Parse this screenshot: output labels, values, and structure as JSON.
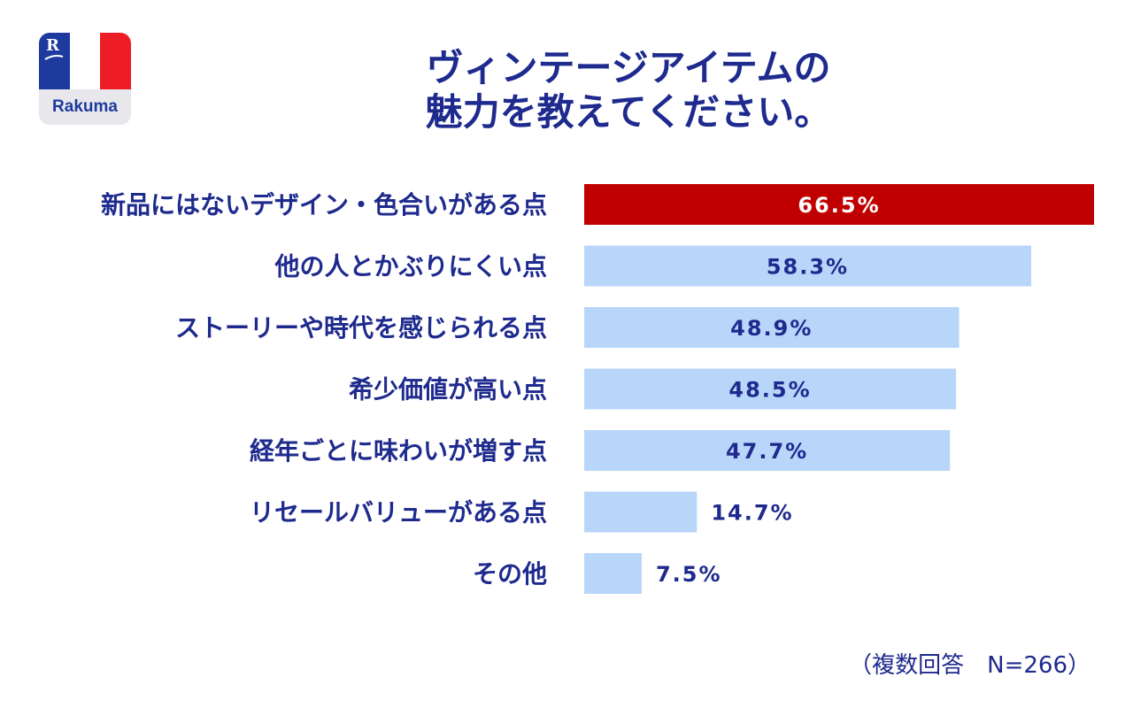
{
  "brand": {
    "logo_text": "Rakuma",
    "logo_mark": "R",
    "colors": {
      "blue": "#1e3a9e",
      "white": "#ffffff",
      "red": "#ee1c25"
    }
  },
  "colors": {
    "title": "#1e2a8e",
    "highlight_bar": "#c00000",
    "bar": "#b8d5fa",
    "label_on_highlight": "#ffffff",
    "label_on_bar": "#1e2a8e"
  },
  "chart_data": {
    "type": "bar",
    "orientation": "horizontal",
    "title_lines": [
      "ヴィンテージアイテムの",
      "魅力を教えてください。"
    ],
    "categories": [
      "新品にはないデザイン・色合いがある点",
      "他の人とかぶりにくい点",
      "ストーリーや時代を感じられる点",
      "希少価値が高い点",
      "経年ごとに味わいが増す点",
      "リセールバリューがある点",
      "その他"
    ],
    "values": [
      66.5,
      58.3,
      48.9,
      48.5,
      47.7,
      14.7,
      7.5
    ],
    "value_labels": [
      "66.5%",
      "58.3%",
      "48.9%",
      "48.5%",
      "47.7%",
      "14.7%",
      "7.5%"
    ],
    "highlight_index": 0,
    "xlim": [
      0,
      66.5
    ],
    "unit": "%",
    "grid": false,
    "legend": "none"
  },
  "footnote": "（複数回答　N=266）"
}
